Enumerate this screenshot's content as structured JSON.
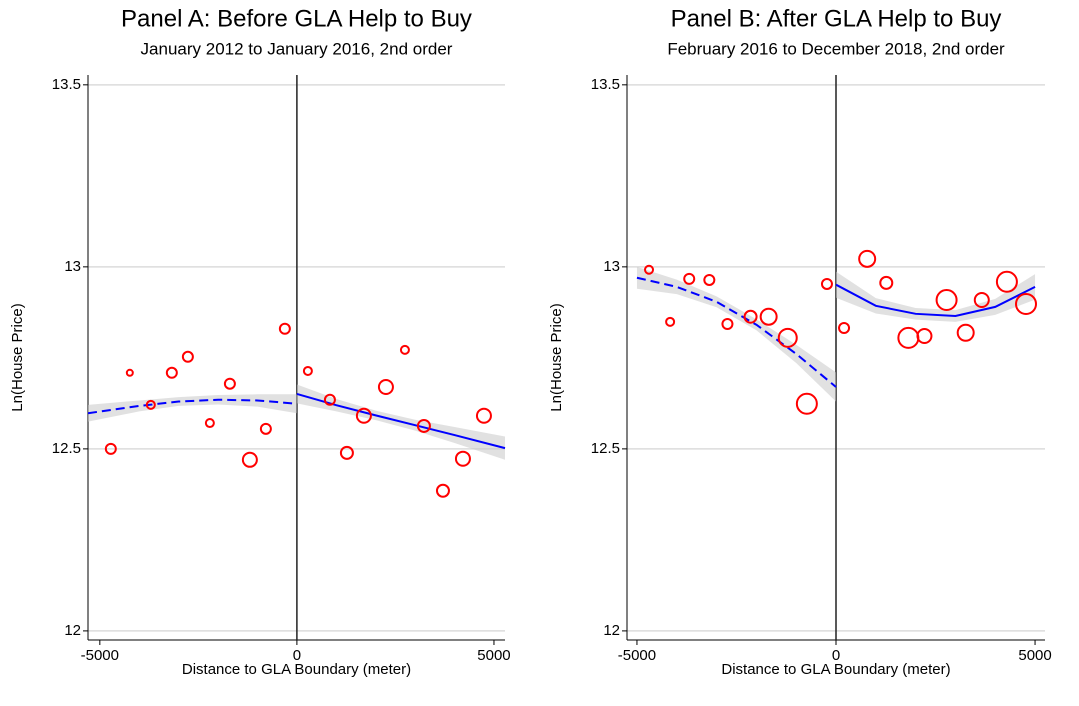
{
  "chart_data": [
    {
      "type": "scatter",
      "title": "Panel A: Before GLA Help to Buy",
      "subtitle": "January 2012 to January 2016, 2nd order",
      "x_label": "Distance to GLA Boundary (meter)",
      "y_label": "Ln(House Price)",
      "xlim": [
        -5300,
        5280
      ],
      "ylim": [
        11.975,
        13.527
      ],
      "xticks": [
        -5000,
        0,
        5000
      ],
      "yticks": [
        12,
        12.5,
        13,
        13.5
      ],
      "grid": true,
      "color": "#ff0000",
      "fit_color": "#0000ff",
      "x": [
        -4721,
        -4239,
        -3706,
        -3173,
        -2766,
        -2208,
        -1700,
        -1193,
        -787,
        -305,
        279,
        838,
        1700,
        1269,
        2259,
        2741,
        3223,
        3706,
        4213,
        4746
      ],
      "values": [
        12.5,
        12.709,
        12.621,
        12.709,
        12.753,
        12.571,
        12.679,
        12.47,
        12.555,
        12.83,
        12.714,
        12.635,
        12.591,
        12.489,
        12.67,
        12.772,
        12.563,
        12.385,
        12.473,
        12.591
      ],
      "sizes": [
        5,
        3,
        4,
        5,
        5,
        4,
        5,
        7,
        5,
        5,
        4,
        5,
        7,
        6,
        7,
        4,
        6,
        6,
        7,
        7
      ],
      "fits": [
        {
          "style": "dashed",
          "x": [
            -5300,
            -4000,
            -3000,
            -2000,
            -1000,
            0
          ],
          "values": [
            12.598,
            12.618,
            12.63,
            12.635,
            12.633,
            12.624
          ],
          "lower": [
            12.575,
            12.603,
            12.618,
            12.622,
            12.616,
            12.598
          ],
          "upper": [
            12.621,
            12.633,
            12.642,
            12.648,
            12.65,
            12.65
          ]
        },
        {
          "style": "solid",
          "x": [
            0,
            1000,
            2000,
            3000,
            4000,
            5280
          ],
          "values": [
            12.651,
            12.62,
            12.592,
            12.565,
            12.538,
            12.502
          ],
          "lower": [
            12.625,
            12.603,
            12.579,
            12.55,
            12.516,
            12.47
          ],
          "upper": [
            12.677,
            12.637,
            12.605,
            12.58,
            12.56,
            12.534
          ]
        }
      ]
    },
    {
      "type": "scatter",
      "title": "Panel B: After GLA Help to Buy",
      "subtitle": "February 2016 to December 2018, 2nd order",
      "x_label": "Distance to GLA Boundary (meter)",
      "y_label": "Ln(House Price)",
      "xlim": [
        -5250,
        5250
      ],
      "ylim": [
        11.975,
        13.527
      ],
      "xticks": [
        -5000,
        0,
        5000
      ],
      "yticks": [
        12,
        12.5,
        13,
        13.5
      ],
      "grid": true,
      "color": "#ff0000",
      "fit_color": "#0000ff",
      "x": [
        -4697,
        -4167,
        -3687,
        -3182,
        -2727,
        -2146,
        -1692,
        -1212,
        -732,
        -227,
        202,
        783,
        1263,
        1818,
        2222,
        2778,
        3258,
        3662,
        4293,
        4773
      ],
      "values": [
        12.992,
        12.849,
        12.967,
        12.964,
        12.843,
        12.863,
        12.863,
        12.805,
        12.624,
        12.953,
        12.832,
        13.022,
        12.956,
        12.805,
        12.81,
        12.909,
        12.819,
        12.909,
        12.959,
        12.898
      ],
      "sizes": [
        4,
        4,
        5,
        5,
        5,
        6,
        8,
        9,
        10,
        5,
        5,
        8,
        6,
        10,
        7,
        10,
        8,
        7,
        10,
        10
      ],
      "fits": [
        {
          "style": "dashed",
          "x": [
            -5000,
            -4000,
            -3000,
            -2000,
            -1000,
            0
          ],
          "values": [
            12.97,
            12.945,
            12.904,
            12.841,
            12.761,
            12.67
          ],
          "lower": [
            12.94,
            12.925,
            12.889,
            12.826,
            12.736,
            12.63
          ],
          "upper": [
            13.0,
            12.965,
            12.919,
            12.856,
            12.786,
            12.71
          ]
        },
        {
          "style": "solid",
          "x": [
            0,
            1000,
            2000,
            3000,
            4000,
            5000
          ],
          "values": [
            12.951,
            12.893,
            12.871,
            12.865,
            12.89,
            12.945
          ],
          "lower": [
            12.915,
            12.872,
            12.855,
            12.849,
            12.868,
            12.91
          ],
          "upper": [
            12.987,
            12.914,
            12.887,
            12.881,
            12.912,
            12.98
          ]
        }
      ]
    }
  ]
}
